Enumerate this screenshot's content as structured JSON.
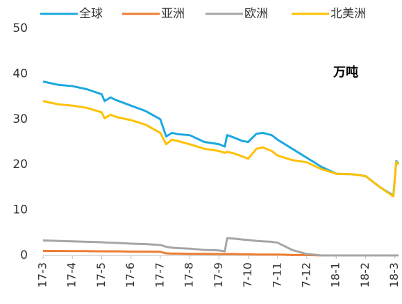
{
  "chart_data": {
    "type": "line",
    "annotation": "万吨",
    "x": [
      0,
      0.5,
      1,
      1.5,
      2,
      2.1,
      2.3,
      2.5,
      3,
      3.5,
      4,
      4.2,
      4.4,
      4.6,
      5,
      5.5,
      6,
      6.2,
      6.28,
      6.5,
      6.8,
      7,
      7.28,
      7.5,
      7.8,
      8,
      8.5,
      9,
      9.5,
      10,
      10.5,
      11,
      11.5,
      11.95,
      12.05,
      12.12
    ],
    "series": [
      {
        "name": "全球",
        "color": "#1ba8e0",
        "values": [
          38.3,
          37.6,
          37.3,
          36.6,
          35.5,
          34,
          34.8,
          34.2,
          33,
          31.8,
          30,
          26.2,
          27,
          26.7,
          26.5,
          25,
          24.5,
          24,
          26.5,
          26,
          25.2,
          25,
          26.8,
          27,
          26.5,
          25.5,
          23.5,
          21.5,
          19.5,
          18,
          17.9,
          17.5,
          15,
          13.2,
          20.8,
          20.2
        ]
      },
      {
        "name": "亚洲",
        "color": "#ed7d31",
        "values": [
          1,
          1,
          0.95,
          0.95,
          0.9,
          0.9,
          0.9,
          0.9,
          0.85,
          0.85,
          0.8,
          0.45,
          0.4,
          0.4,
          0.35,
          0.35,
          0.3,
          0.3,
          0.3,
          0.3,
          0.25,
          0.25,
          0.2,
          0.2,
          0.2,
          0.2,
          0.1,
          0.1,
          0,
          0,
          0,
          0,
          0,
          0,
          0,
          0
        ]
      },
      {
        "name": "欧洲",
        "color": "#a5a5a5",
        "values": [
          3.3,
          3.2,
          3.1,
          3.0,
          2.9,
          2.85,
          2.8,
          2.75,
          2.6,
          2.5,
          2.3,
          1.9,
          1.7,
          1.6,
          1.5,
          1.2,
          1.1,
          0.9,
          3.8,
          3.7,
          3.5,
          3.4,
          3.2,
          3.1,
          3.0,
          2.8,
          1.2,
          0.3,
          0,
          0,
          0,
          0,
          0,
          0,
          0,
          0
        ]
      },
      {
        "name": "北美洲",
        "color": "#ffc000",
        "values": [
          34,
          33.3,
          33,
          32.5,
          31.5,
          30.2,
          31,
          30.5,
          29.8,
          28.8,
          27,
          24.5,
          25.5,
          25.2,
          24.5,
          23.5,
          23,
          22.6,
          22.8,
          22.5,
          21.8,
          21.3,
          23.5,
          23.8,
          23,
          22,
          21,
          20.5,
          19,
          18,
          17.9,
          17.5,
          15,
          13,
          20.6,
          20
        ]
      }
    ],
    "xlim": [
      0,
      12.15
    ],
    "xticks": [
      {
        "value": 0,
        "label": "17-3"
      },
      {
        "value": 1,
        "label": "17-4"
      },
      {
        "value": 2,
        "label": "17-5"
      },
      {
        "value": 3,
        "label": "17-6"
      },
      {
        "value": 4,
        "label": "17-7"
      },
      {
        "value": 5,
        "label": "17-8"
      },
      {
        "value": 6,
        "label": "17-9"
      },
      {
        "value": 7,
        "label": "7-10"
      },
      {
        "value": 8,
        "label": "7-11"
      },
      {
        "value": 9,
        "label": "7-12"
      },
      {
        "value": 10,
        "label": "18-1"
      },
      {
        "value": 11,
        "label": "18-2"
      },
      {
        "value": 12,
        "label": "18-3"
      }
    ],
    "ylim": [
      0,
      50
    ],
    "yticks": [
      0,
      10,
      20,
      30,
      40,
      50
    ],
    "legend": "top"
  }
}
